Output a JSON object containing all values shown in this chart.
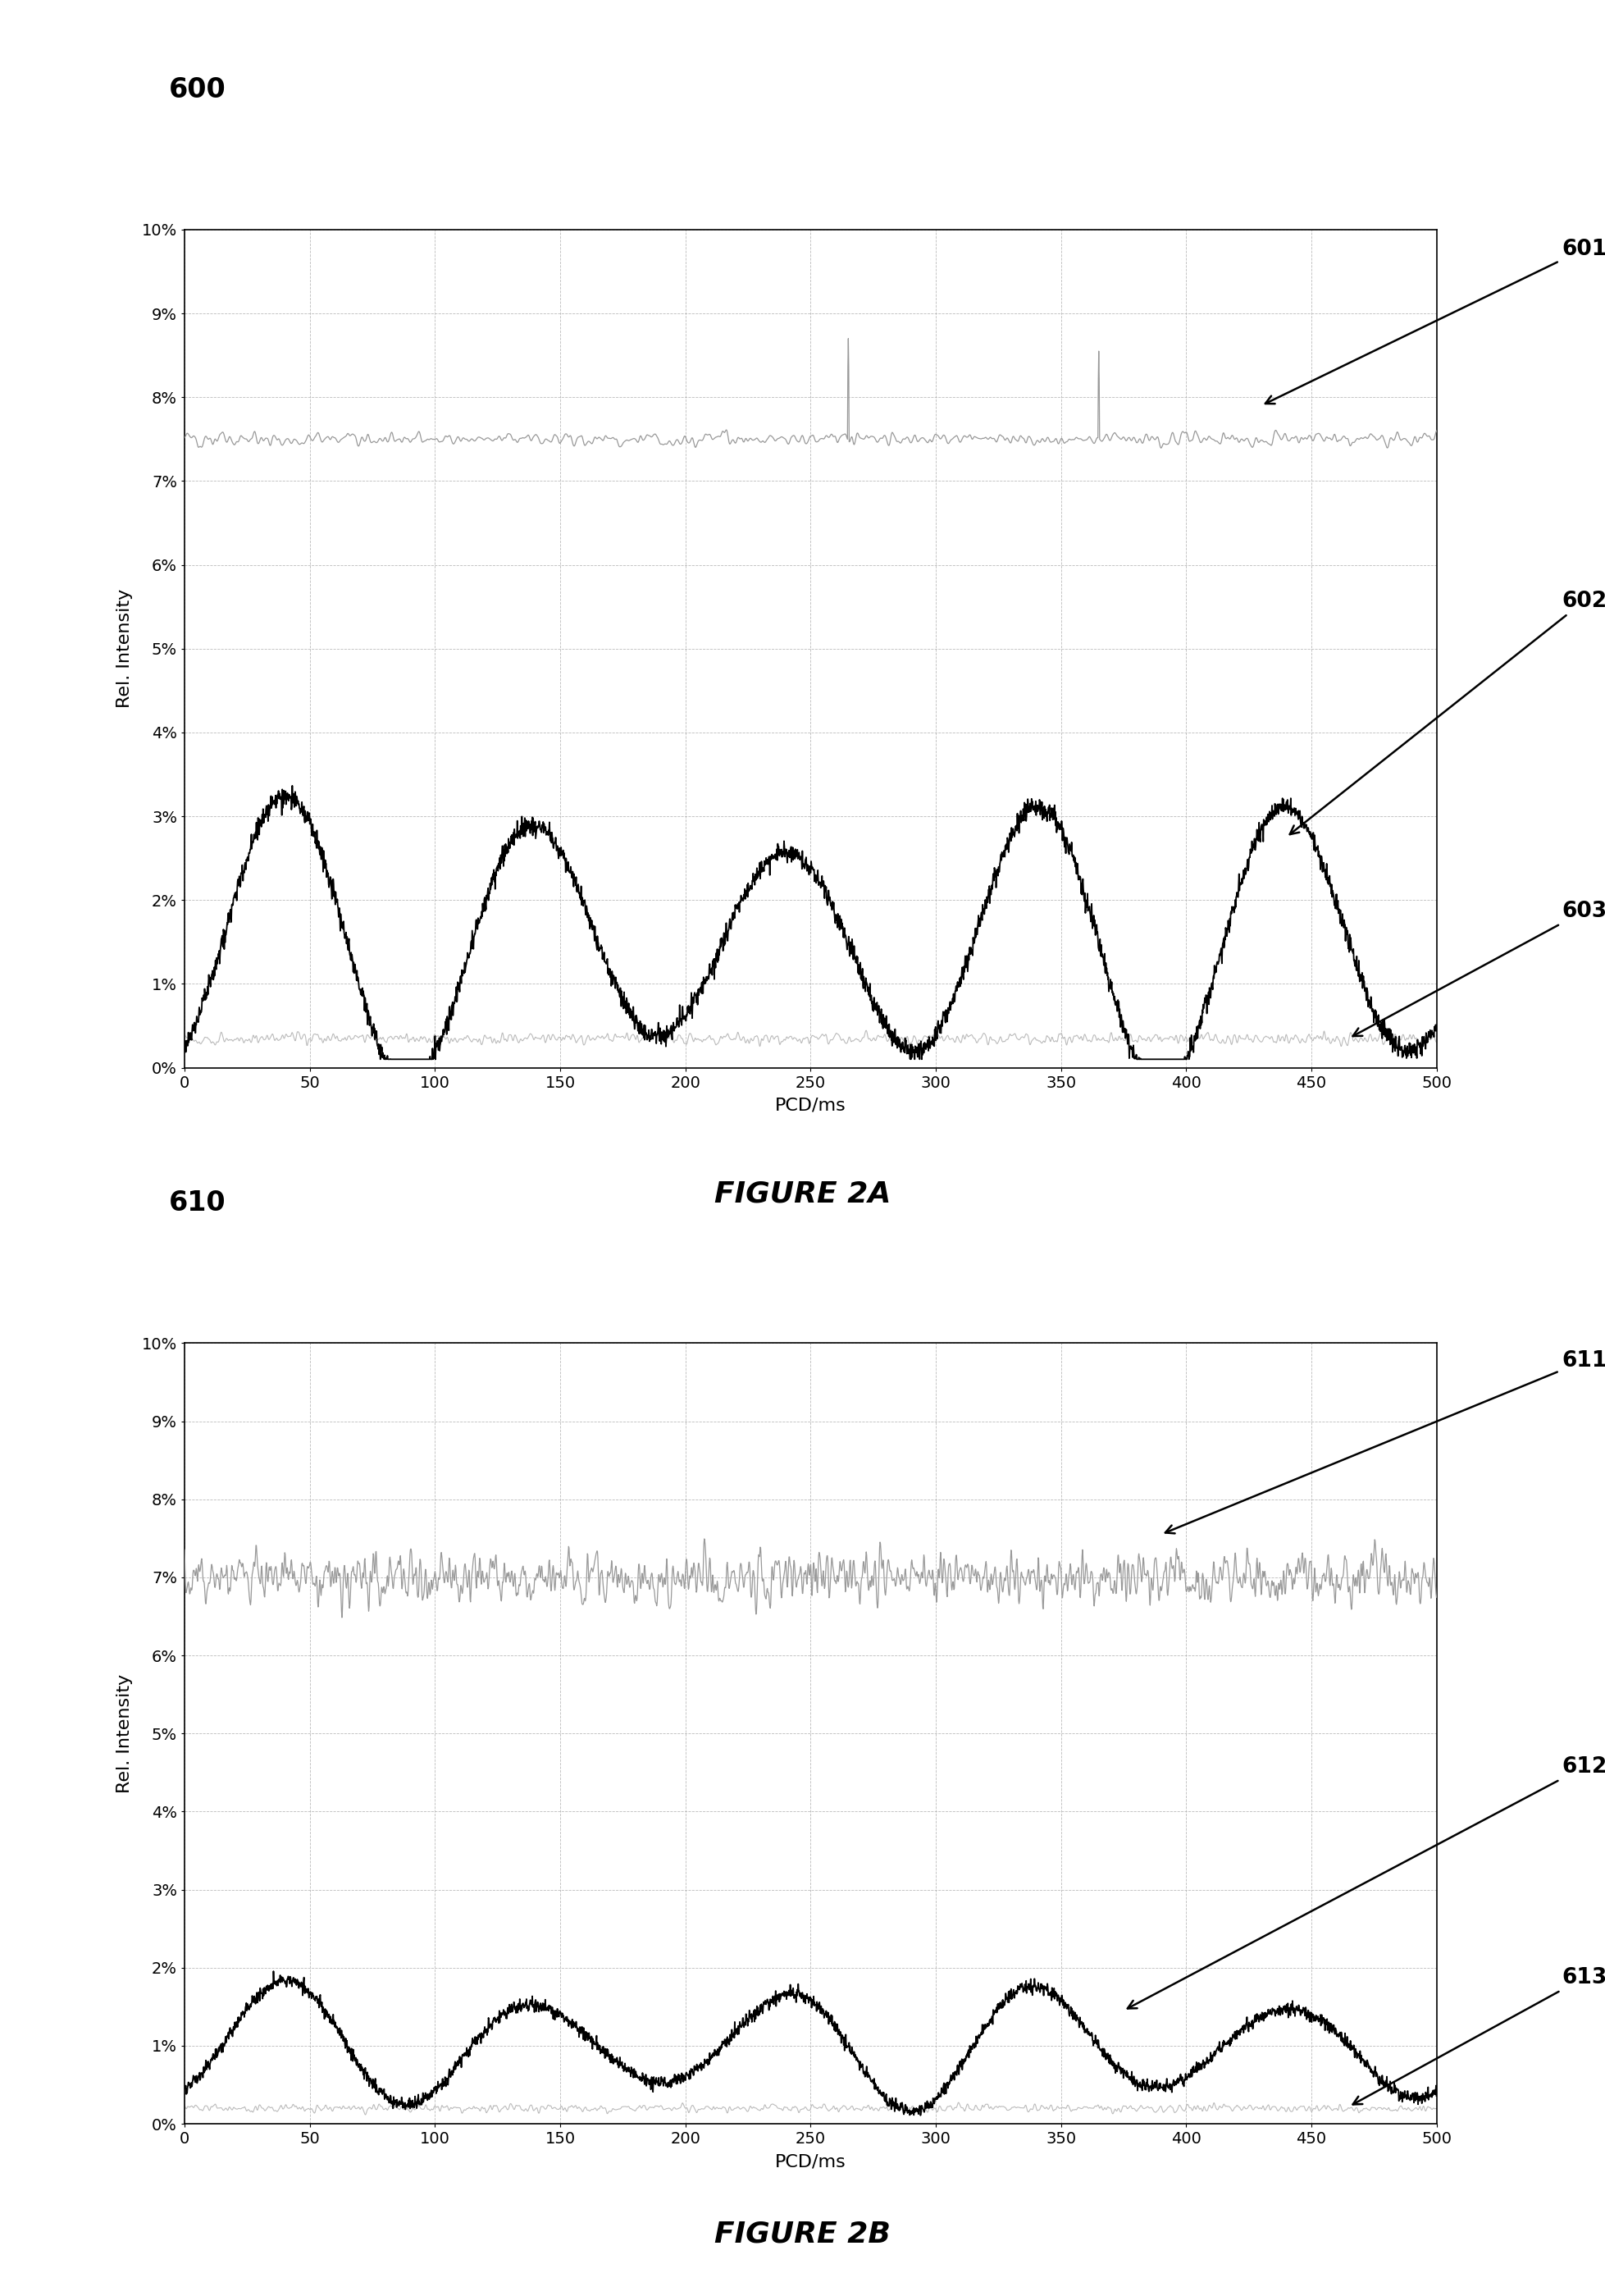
{
  "fig_label_1": "600",
  "fig_label_2": "610",
  "fig_caption_1": "FIGURE 2A",
  "fig_caption_2": "FIGURE 2B",
  "ann1": [
    "601",
    "602",
    "603"
  ],
  "ann2": [
    "611",
    "612",
    "613"
  ],
  "xlabel": "PCD/ms",
  "ylabel": "Rel. Intensity",
  "yticks": [
    0,
    1,
    2,
    3,
    4,
    5,
    6,
    7,
    8,
    9,
    10
  ],
  "xticks": [
    0,
    50,
    100,
    150,
    200,
    250,
    300,
    350,
    400,
    450,
    500
  ],
  "xlim": [
    0,
    500
  ],
  "ylim": [
    0,
    10
  ],
  "gray_color": "#999999",
  "black_color": "#000000",
  "light_gray": "#bbbbbb"
}
